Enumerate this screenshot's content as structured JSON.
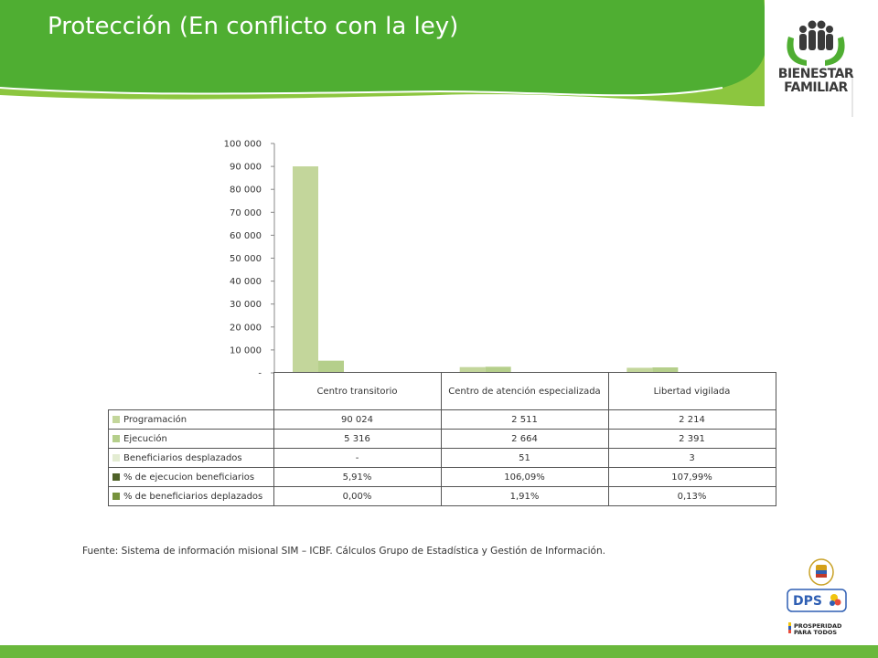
{
  "slide": {
    "title": "Protección (En conflicto con la ley)",
    "logo_text": [
      "BIENESTAR",
      "FAMILIAR"
    ],
    "source_note": "Fuente: Sistema de información misional SIM – ICBF. Cálculos Grupo de Estadística y Gestión de Información.",
    "footer_logos": [
      "DPS",
      "PROSPERIDAD",
      "PARA TODOS"
    ]
  },
  "colors": {
    "header_green": "#4fae32",
    "header_light_green": "#8cc63f",
    "bottom_bar": "#6ab83c",
    "programacion": "#c3d69b",
    "ejecucion": "#b5cf8b",
    "beneficiarios_desplazados": "#e3ecd2",
    "pct_ejecucion": "#4f6228",
    "pct_desplazados": "#76923c"
  },
  "chart_data": {
    "type": "bar",
    "categories": [
      "Centro transitorio",
      "Centro de atención especializada",
      "Libertad vigilada"
    ],
    "ylim": [
      0,
      100000
    ],
    "yticks": [
      0,
      10000,
      20000,
      30000,
      40000,
      50000,
      60000,
      70000,
      80000,
      90000,
      100000
    ],
    "ytick_labels": [
      "-",
      "10 000",
      "20 000",
      "30 000",
      "40 000",
      "50 000",
      "60 000",
      "70 000",
      "80 000",
      "90 000",
      "100 000"
    ],
    "legend_placement": "data-table",
    "series": [
      {
        "name": "Programación",
        "values": [
          90024,
          2511,
          2214
        ],
        "labels": [
          "90 024",
          "2 511",
          "2 214"
        ],
        "color": "#c3d69b"
      },
      {
        "name": "Ejecución",
        "values": [
          5316,
          2664,
          2391
        ],
        "labels": [
          "5 316",
          "2 664",
          "2 391"
        ],
        "color": "#b5cf8b"
      },
      {
        "name": "Beneficiarios desplazados",
        "values": [
          0,
          51,
          3
        ],
        "labels": [
          "-",
          "51",
          "3"
        ],
        "color": "#e3ecd2"
      },
      {
        "name": "% de ejecucion beneficiarios",
        "values": [
          5.91,
          106.09,
          107.99
        ],
        "labels": [
          "5,91%",
          "106,09%",
          "107,99%"
        ],
        "color": "#4f6228"
      },
      {
        "name": "% de beneficiarios deplazados",
        "values": [
          0.0,
          1.91,
          0.13
        ],
        "labels": [
          "0,00%",
          "1,91%",
          "0,13%"
        ],
        "color": "#76923c"
      }
    ]
  }
}
